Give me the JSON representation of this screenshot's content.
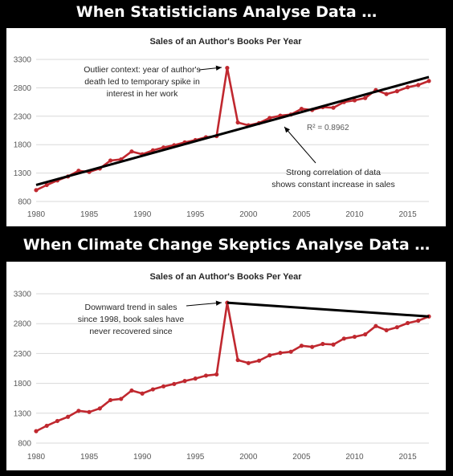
{
  "banners": {
    "top": "When Statisticians Analyse Data …",
    "bottom": "When Climate Change Skeptics Analyse Data …"
  },
  "colors": {
    "series": "#c0282f",
    "trendline": "#000000",
    "background": "#000000"
  },
  "chart_data": [
    {
      "type": "line",
      "title": "Sales of an Author's Books Per Year",
      "xlabel": "",
      "ylabel": "",
      "xlim": [
        1980,
        2017
      ],
      "ylim": [
        800,
        3300
      ],
      "xticks": [
        "1980",
        "1985",
        "1990",
        "1995",
        "2000",
        "2005",
        "2010",
        "2015"
      ],
      "yticks": [
        "800",
        "1300",
        "1800",
        "2300",
        "2800",
        "3300"
      ],
      "grid": true,
      "x": [
        1980,
        1981,
        1982,
        1983,
        1984,
        1985,
        1986,
        1987,
        1988,
        1989,
        1990,
        1991,
        1992,
        1993,
        1994,
        1995,
        1996,
        1997,
        1998,
        1999,
        2000,
        2001,
        2002,
        2003,
        2004,
        2005,
        2006,
        2007,
        2008,
        2009,
        2010,
        2011,
        2012,
        2013,
        2014,
        2015,
        2016,
        2017
      ],
      "series": [
        {
          "values": [
            1000,
            1090,
            1170,
            1240,
            1340,
            1320,
            1380,
            1520,
            1540,
            1680,
            1630,
            1700,
            1750,
            1790,
            1840,
            1880,
            1930,
            1950,
            3150,
            2190,
            2140,
            2180,
            2270,
            2310,
            2330,
            2430,
            2410,
            2460,
            2450,
            2550,
            2580,
            2620,
            2760,
            2690,
            2740,
            2810,
            2850,
            2920
          ]
        }
      ],
      "trendline": {
        "x": [
          1980,
          2017
        ],
        "y": [
          1090,
          2990
        ],
        "label": "R² = 0.8962"
      },
      "annotations": [
        {
          "lines": [
            "Outlier context: year of author's",
            "death led to temporary spike in",
            "interest in her work"
          ]
        },
        {
          "lines": [
            "Strong correlation of data",
            "shows constant increase in sales"
          ]
        }
      ]
    },
    {
      "type": "line",
      "title": "Sales of an Author's Books Per Year",
      "xlabel": "",
      "ylabel": "",
      "xlim": [
        1980,
        2017
      ],
      "ylim": [
        800,
        3300
      ],
      "xticks": [
        "1980",
        "1985",
        "1990",
        "1995",
        "2000",
        "2005",
        "2010",
        "2015"
      ],
      "yticks": [
        "800",
        "1300",
        "1800",
        "2300",
        "2800",
        "3300"
      ],
      "grid": true,
      "x": [
        1980,
        1981,
        1982,
        1983,
        1984,
        1985,
        1986,
        1987,
        1988,
        1989,
        1990,
        1991,
        1992,
        1993,
        1994,
        1995,
        1996,
        1997,
        1998,
        1999,
        2000,
        2001,
        2002,
        2003,
        2004,
        2005,
        2006,
        2007,
        2008,
        2009,
        2010,
        2011,
        2012,
        2013,
        2014,
        2015,
        2016,
        2017
      ],
      "series": [
        {
          "values": [
            1000,
            1090,
            1170,
            1240,
            1340,
            1320,
            1380,
            1520,
            1540,
            1680,
            1630,
            1700,
            1750,
            1790,
            1840,
            1880,
            1930,
            1950,
            3150,
            2190,
            2140,
            2180,
            2270,
            2310,
            2330,
            2430,
            2410,
            2460,
            2450,
            2550,
            2580,
            2620,
            2760,
            2690,
            2740,
            2810,
            2850,
            2920
          ]
        }
      ],
      "trendline": {
        "x": [
          1998,
          2017
        ],
        "y": [
          3150,
          2920
        ]
      },
      "annotations": [
        {
          "lines": [
            "Downward trend in sales",
            "since 1998, book sales have",
            "never recovered since"
          ]
        }
      ]
    }
  ]
}
